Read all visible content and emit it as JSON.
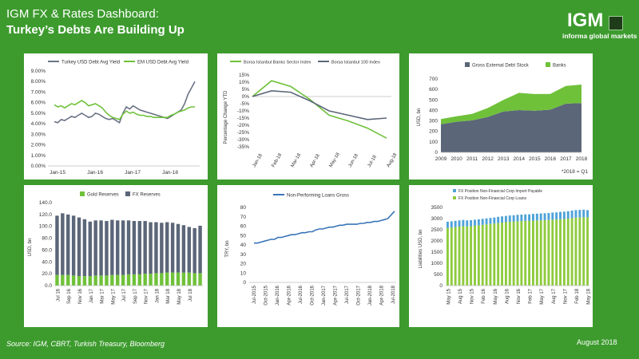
{
  "header": {
    "title": "IGM FX & Rates Dashboard:",
    "subtitle": "Turkey’s Debts Are Building Up"
  },
  "logo": {
    "text": "IGM",
    "subtext": "informa global markets"
  },
  "footer": {
    "source": "Source: IGM, CBRT, Turkish Treasury, Bloomberg",
    "date": "August 2018"
  },
  "colors": {
    "background": "#3d9b2e",
    "green": "#67c23a",
    "navy": "#4a5872",
    "blue": "#3a75b8",
    "gray": "#5b6679"
  },
  "chart_data": [
    {
      "type": "line",
      "title": "",
      "legend": [
        "Turkey USD Debt Avg Yield",
        "EM USD Debt Avg Yield"
      ],
      "legend_position": "top",
      "x_ticks": [
        "Jan-15",
        "Jan-16",
        "Jan-17",
        "Jan-18"
      ],
      "y_ticks": [
        "0.00%",
        "1.00%",
        "2.00%",
        "3.00%",
        "4.00%",
        "5.00%",
        "6.00%",
        "7.00%",
        "8.00%",
        "9.00%"
      ],
      "ylim": [
        0,
        9
      ],
      "series": [
        {
          "name": "Turkey USD Debt Avg Yield",
          "color": "#6b7385",
          "values": [
            4.2,
            4.1,
            4.4,
            4.3,
            4.5,
            4.7,
            4.6,
            4.8,
            5.0,
            4.8,
            4.6,
            4.7,
            5.0,
            4.9,
            4.7,
            4.5,
            4.4,
            4.5,
            4.3,
            4.1,
            5.0,
            5.6,
            5.4,
            5.7,
            5.5,
            5.3,
            5.2,
            5.1,
            5.0,
            4.9,
            4.8,
            4.7,
            4.6,
            4.5,
            4.7,
            4.9,
            5.1,
            5.3,
            5.9,
            6.8,
            7.4,
            8.0
          ]
        },
        {
          "name": "EM USD Debt Avg Yield",
          "color": "#6fc13a",
          "values": [
            5.8,
            5.6,
            5.7,
            5.5,
            5.7,
            5.9,
            5.8,
            6.0,
            6.2,
            6.0,
            5.7,
            5.8,
            5.9,
            5.7,
            5.5,
            5.1,
            4.8,
            4.6,
            4.5,
            4.4,
            4.9,
            5.2,
            5.0,
            5.1,
            4.9,
            4.8,
            4.8,
            4.7,
            4.7,
            4.6,
            4.6,
            4.6,
            4.6,
            4.6,
            4.8,
            4.9,
            5.1,
            5.2,
            5.3,
            5.5,
            5.6,
            5.6
          ]
        }
      ]
    },
    {
      "type": "line",
      "title": "",
      "legend": [
        "Borsa Istanbul Banks Sector Index",
        "Borsa Istanbul 100 Index"
      ],
      "legend_position": "top",
      "ylabel": "Percentage Change YTD",
      "categories": [
        "Jan-18",
        "Feb-18",
        "Mar-18",
        "Apr-18",
        "May-18",
        "Jun-18",
        "Jul-18",
        "Aug-18"
      ],
      "y_ticks": [
        "15%",
        "10%",
        "5%",
        "0%",
        "-5%",
        "-10%",
        "-15%",
        "-20%",
        "-25%",
        "-30%",
        "-35%"
      ],
      "ylim": [
        -35,
        15
      ],
      "series": [
        {
          "name": "Borsa Istanbul Banks Sector Index",
          "color": "#6fc13a",
          "values": [
            0,
            11,
            7,
            -2,
            -13,
            -17,
            -22,
            -29
          ]
        },
        {
          "name": "Borsa Istanbul 100 Index",
          "color": "#5b6679",
          "values": [
            0,
            4,
            3,
            -3,
            -10,
            -13,
            -16,
            -15
          ]
        }
      ]
    },
    {
      "type": "area",
      "title": "",
      "legend": [
        "Gross External Debt Stock",
        "Banks"
      ],
      "legend_position": "top",
      "ylabel": "USD, bn",
      "categories": [
        "2009",
        "2010",
        "2011",
        "2012",
        "2013",
        "2014",
        "2015",
        "2016",
        "2017",
        "2018"
      ],
      "y_ticks": [
        "0",
        "100",
        "200",
        "300",
        "400",
        "500",
        "600",
        "700"
      ],
      "ylim": [
        0,
        700
      ],
      "note": "*2018 = Q1",
      "series": [
        {
          "name": "Gross External Debt Stock",
          "color": "#5b6679",
          "values": [
            268,
            292,
            305,
            338,
            390,
            403,
            398,
            407,
            465,
            470
          ]
        },
        {
          "name": "Banks",
          "color": "#6fc13a",
          "values": [
            50,
            52,
            62,
            85,
            110,
            165,
            158,
            150,
            168,
            177
          ]
        }
      ]
    },
    {
      "type": "bar",
      "title": "",
      "legend": [
        "Gold Reserves",
        "FX Reserves"
      ],
      "legend_position": "top",
      "ylabel": "USD, bn",
      "x_ticks": [
        "Jul 16",
        "Sep 16",
        "Nov 16",
        "Jan 17",
        "Mar 17",
        "May 17",
        "Jul 17",
        "Sep 17",
        "Nov 17",
        "Jan 18",
        "Mar 18",
        "May 18",
        "Jul 18"
      ],
      "y_ticks": [
        "0.0",
        "20.0",
        "40.0",
        "60.0",
        "80.0",
        "100.0",
        "120.0",
        "140.0"
      ],
      "ylim": [
        0,
        140
      ],
      "series": [
        {
          "name": "Gold Reserves",
          "color": "#6fc13a",
          "values": [
            18,
            18,
            18,
            17,
            16,
            16,
            16,
            17,
            17,
            17,
            18,
            18,
            18,
            19,
            19,
            19,
            20,
            20,
            21,
            21,
            22,
            22,
            22,
            22,
            22,
            21,
            21
          ]
        },
        {
          "name": "FX Reserves",
          "color": "#5b6679",
          "values": [
            100,
            104,
            102,
            101,
            99,
            96,
            92,
            93,
            93,
            92,
            93,
            92,
            92,
            91,
            90,
            90,
            89,
            87,
            86,
            85,
            85,
            84,
            82,
            80,
            77,
            76,
            80
          ]
        }
      ]
    },
    {
      "type": "line",
      "title": "",
      "legend": [
        "Non-Performing Loans Gross"
      ],
      "legend_position": "top",
      "ylabel": "TRY, bn",
      "x_ticks": [
        "Jul-2015",
        "Oct-2015",
        "Jan-2016",
        "Apr-2016",
        "Jul-2016",
        "Oct-2016",
        "Jan-2017",
        "Apr-2017",
        "Jul-2017",
        "Oct-2017",
        "Jan-2018",
        "Apr-2018",
        "Jul-2018"
      ],
      "y_ticks": [
        "0",
        "10",
        "20",
        "30",
        "40",
        "50",
        "60",
        "70",
        "80"
      ],
      "ylim": [
        0,
        80
      ],
      "series": [
        {
          "name": "Non-Performing Loans Gross",
          "color": "#3a75b8",
          "values": [
            42,
            42,
            43,
            44,
            45,
            46,
            46,
            48,
            48,
            49,
            50,
            51,
            51,
            52,
            53,
            53,
            54,
            54,
            56,
            57,
            57,
            58,
            59,
            59,
            60,
            61,
            61,
            62,
            62,
            62,
            62,
            63,
            63,
            64,
            64,
            65,
            65,
            66,
            67,
            68,
            72,
            76
          ]
        }
      ]
    },
    {
      "type": "bar",
      "title": "",
      "legend": [
        "FX Position Non-Financial Corp Import Payable",
        "FX Position Non-Financial Corp Loans"
      ],
      "legend_position": "top",
      "ylabel": "Liabilities USD, bn",
      "x_ticks": [
        "May 15",
        "Aug 15",
        "Nov 15",
        "Feb 16",
        "May 16",
        "Aug 16",
        "Nov 16",
        "Feb 17",
        "May 17",
        "Aug 17",
        "Nov 17",
        "Feb 18",
        "May 18"
      ],
      "y_ticks": [
        "0",
        "500",
        "1000",
        "1500",
        "2000",
        "2500",
        "3000",
        "3500"
      ],
      "ylim": [
        0,
        3500
      ],
      "series": [
        {
          "name": "FX Position Non-Financial Corp Loans",
          "color": "#8fcb3f",
          "values": [
            2580,
            2600,
            2620,
            2640,
            2660,
            2650,
            2660,
            2680,
            2700,
            2720,
            2740,
            2760,
            2780,
            2800,
            2820,
            2840,
            2860,
            2870,
            2880,
            2890,
            2900,
            2900,
            2910,
            2920,
            2920,
            2930,
            2940,
            2950,
            2960,
            2970,
            2980,
            3000,
            3020,
            3040,
            3050,
            3060,
            3060
          ]
        },
        {
          "name": "FX Position Non-Financial Corp Import Payable",
          "color": "#4fa3d8",
          "values": [
            280,
            280,
            280,
            280,
            280,
            270,
            270,
            270,
            270,
            270,
            270,
            270,
            270,
            280,
            280,
            280,
            280,
            280,
            290,
            290,
            290,
            290,
            300,
            300,
            310,
            310,
            310,
            320,
            320,
            330,
            330,
            330,
            340,
            340,
            340,
            340,
            320
          ]
        }
      ]
    }
  ]
}
